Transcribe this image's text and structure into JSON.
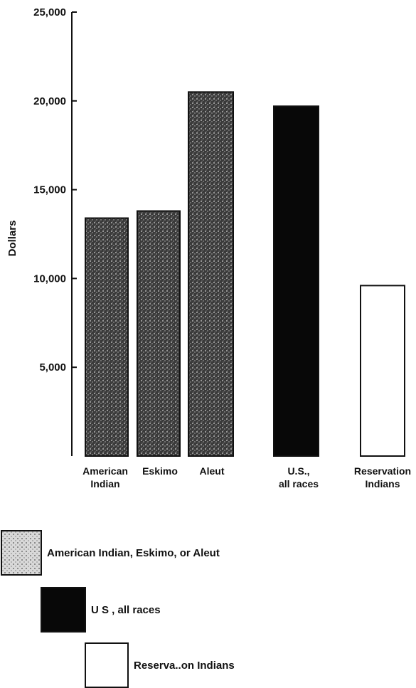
{
  "chart_data": {
    "type": "bar",
    "ylabel": "Dollars",
    "ylim": [
      0,
      25000
    ],
    "yticks": [
      5000,
      10000,
      15000,
      20000,
      25000
    ],
    "ytick_labels": [
      "5,000",
      "10,000",
      "15,000",
      "20,000",
      "25,000"
    ],
    "categories": [
      {
        "label": [
          "American",
          "Indian"
        ],
        "value": 13400,
        "group": "aian"
      },
      {
        "label": [
          "Eskimo"
        ],
        "value": 13800,
        "group": "aian"
      },
      {
        "label": [
          "Aleut"
        ],
        "value": 20500,
        "group": "aian"
      },
      {
        "label": [
          "U.S.,",
          "all races"
        ],
        "value": 19700,
        "group": "us"
      },
      {
        "label": [
          "Reservation",
          "Indians"
        ],
        "value": 9600,
        "group": "res"
      }
    ],
    "legend": [
      {
        "key": "aian",
        "label": "American Indian, Eskimo, or Aleut"
      },
      {
        "key": "us",
        "label": "U S , all races"
      },
      {
        "key": "res",
        "label": "Reserva..on Indians"
      }
    ],
    "colors": {
      "aian": "#2b2b2b",
      "us": "#080808",
      "res": "#ffffff",
      "axis": "#111111"
    }
  }
}
